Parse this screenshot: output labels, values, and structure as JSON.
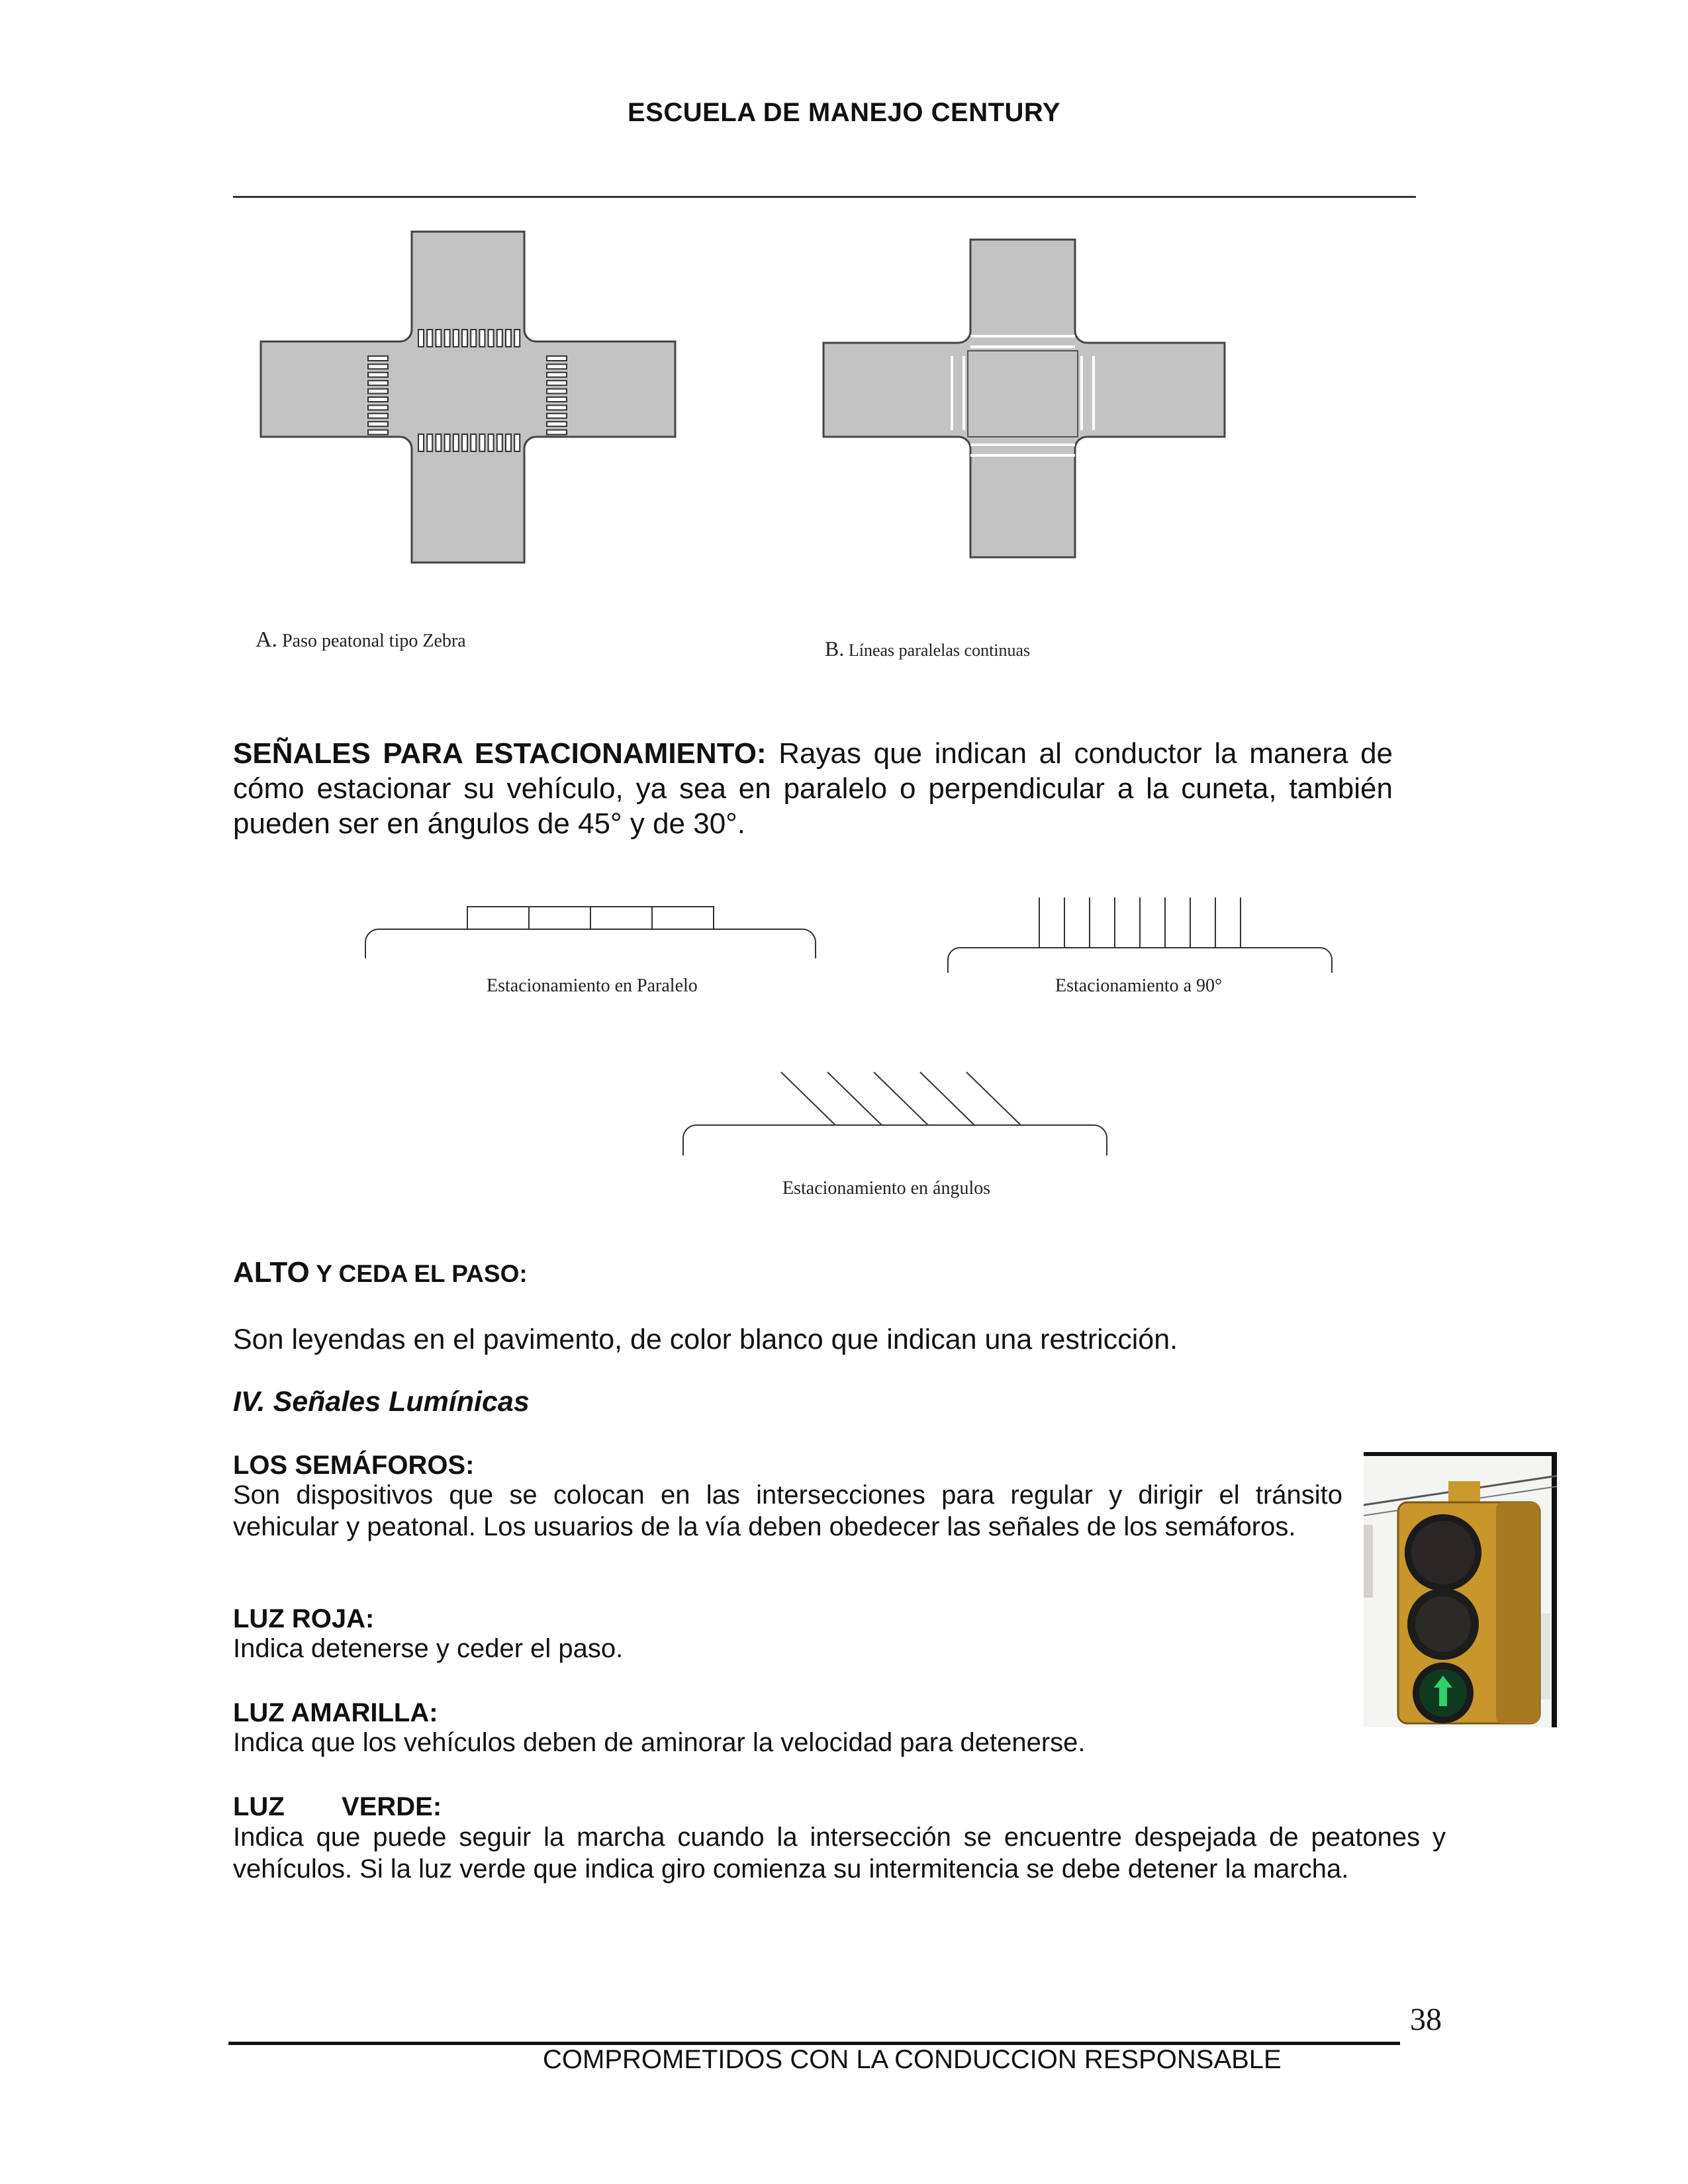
{
  "header": {
    "title": "ESCUELA DE MANEJO CENTURY"
  },
  "figures": {
    "zebra_letter": "A.",
    "zebra_caption": "Paso peatonal tipo Zebra",
    "parallel_letter": "B.",
    "parallel_caption": "Líneas paralelas continuas"
  },
  "parking": {
    "heading": "SEÑALES PARA ESTACIONAMIENTO:",
    "text": " Rayas que indican al conductor la manera de cómo estacionar su vehículo, ya sea en paralelo o perpendicular a la cuneta, también pueden ser en ángulos de 45° y de 30°.",
    "diagram_parallel": "Estacionamiento en Paralelo",
    "diagram_90": "Estacionamiento a 90°",
    "diagram_angle": "Estacionamiento en ángulos"
  },
  "alto": {
    "heading_big": "ALTO",
    "heading_small": " Y CEDA EL PASO:",
    "text": "Son leyendas en el pavimento, de color blanco que indican una restricción."
  },
  "luminicas": {
    "heading": "IV. Señales Lumínicas"
  },
  "semaforos": {
    "heading": "LOS SEMÁFOROS:",
    "text": "Son dispositivos que se colocan en las intersecciones para regular y dirigir el tránsito vehicular y peatonal. Los  usuarios de la vía deben obedecer las señales de los semáforos."
  },
  "roja": {
    "heading": "LUZ ROJA:",
    "text": "Indica detenerse y ceder el paso."
  },
  "amarilla": {
    "heading": "LUZ AMARILLA:",
    "text": "Indica que los vehículos deben de aminorar la velocidad para detenerse."
  },
  "verde": {
    "heading_a": "LUZ",
    "heading_b": "VERDE:",
    "text": "Indica que puede seguir la marcha cuando la intersección se encuentre despejada de peatones y vehículos. Si la luz verde que indica giro comienza su intermitencia se debe detener la marcha."
  },
  "footer": {
    "page_number": "38",
    "slogan": "COMPROMETIDOS CON LA CONDUCCION RESPONSABLE"
  }
}
